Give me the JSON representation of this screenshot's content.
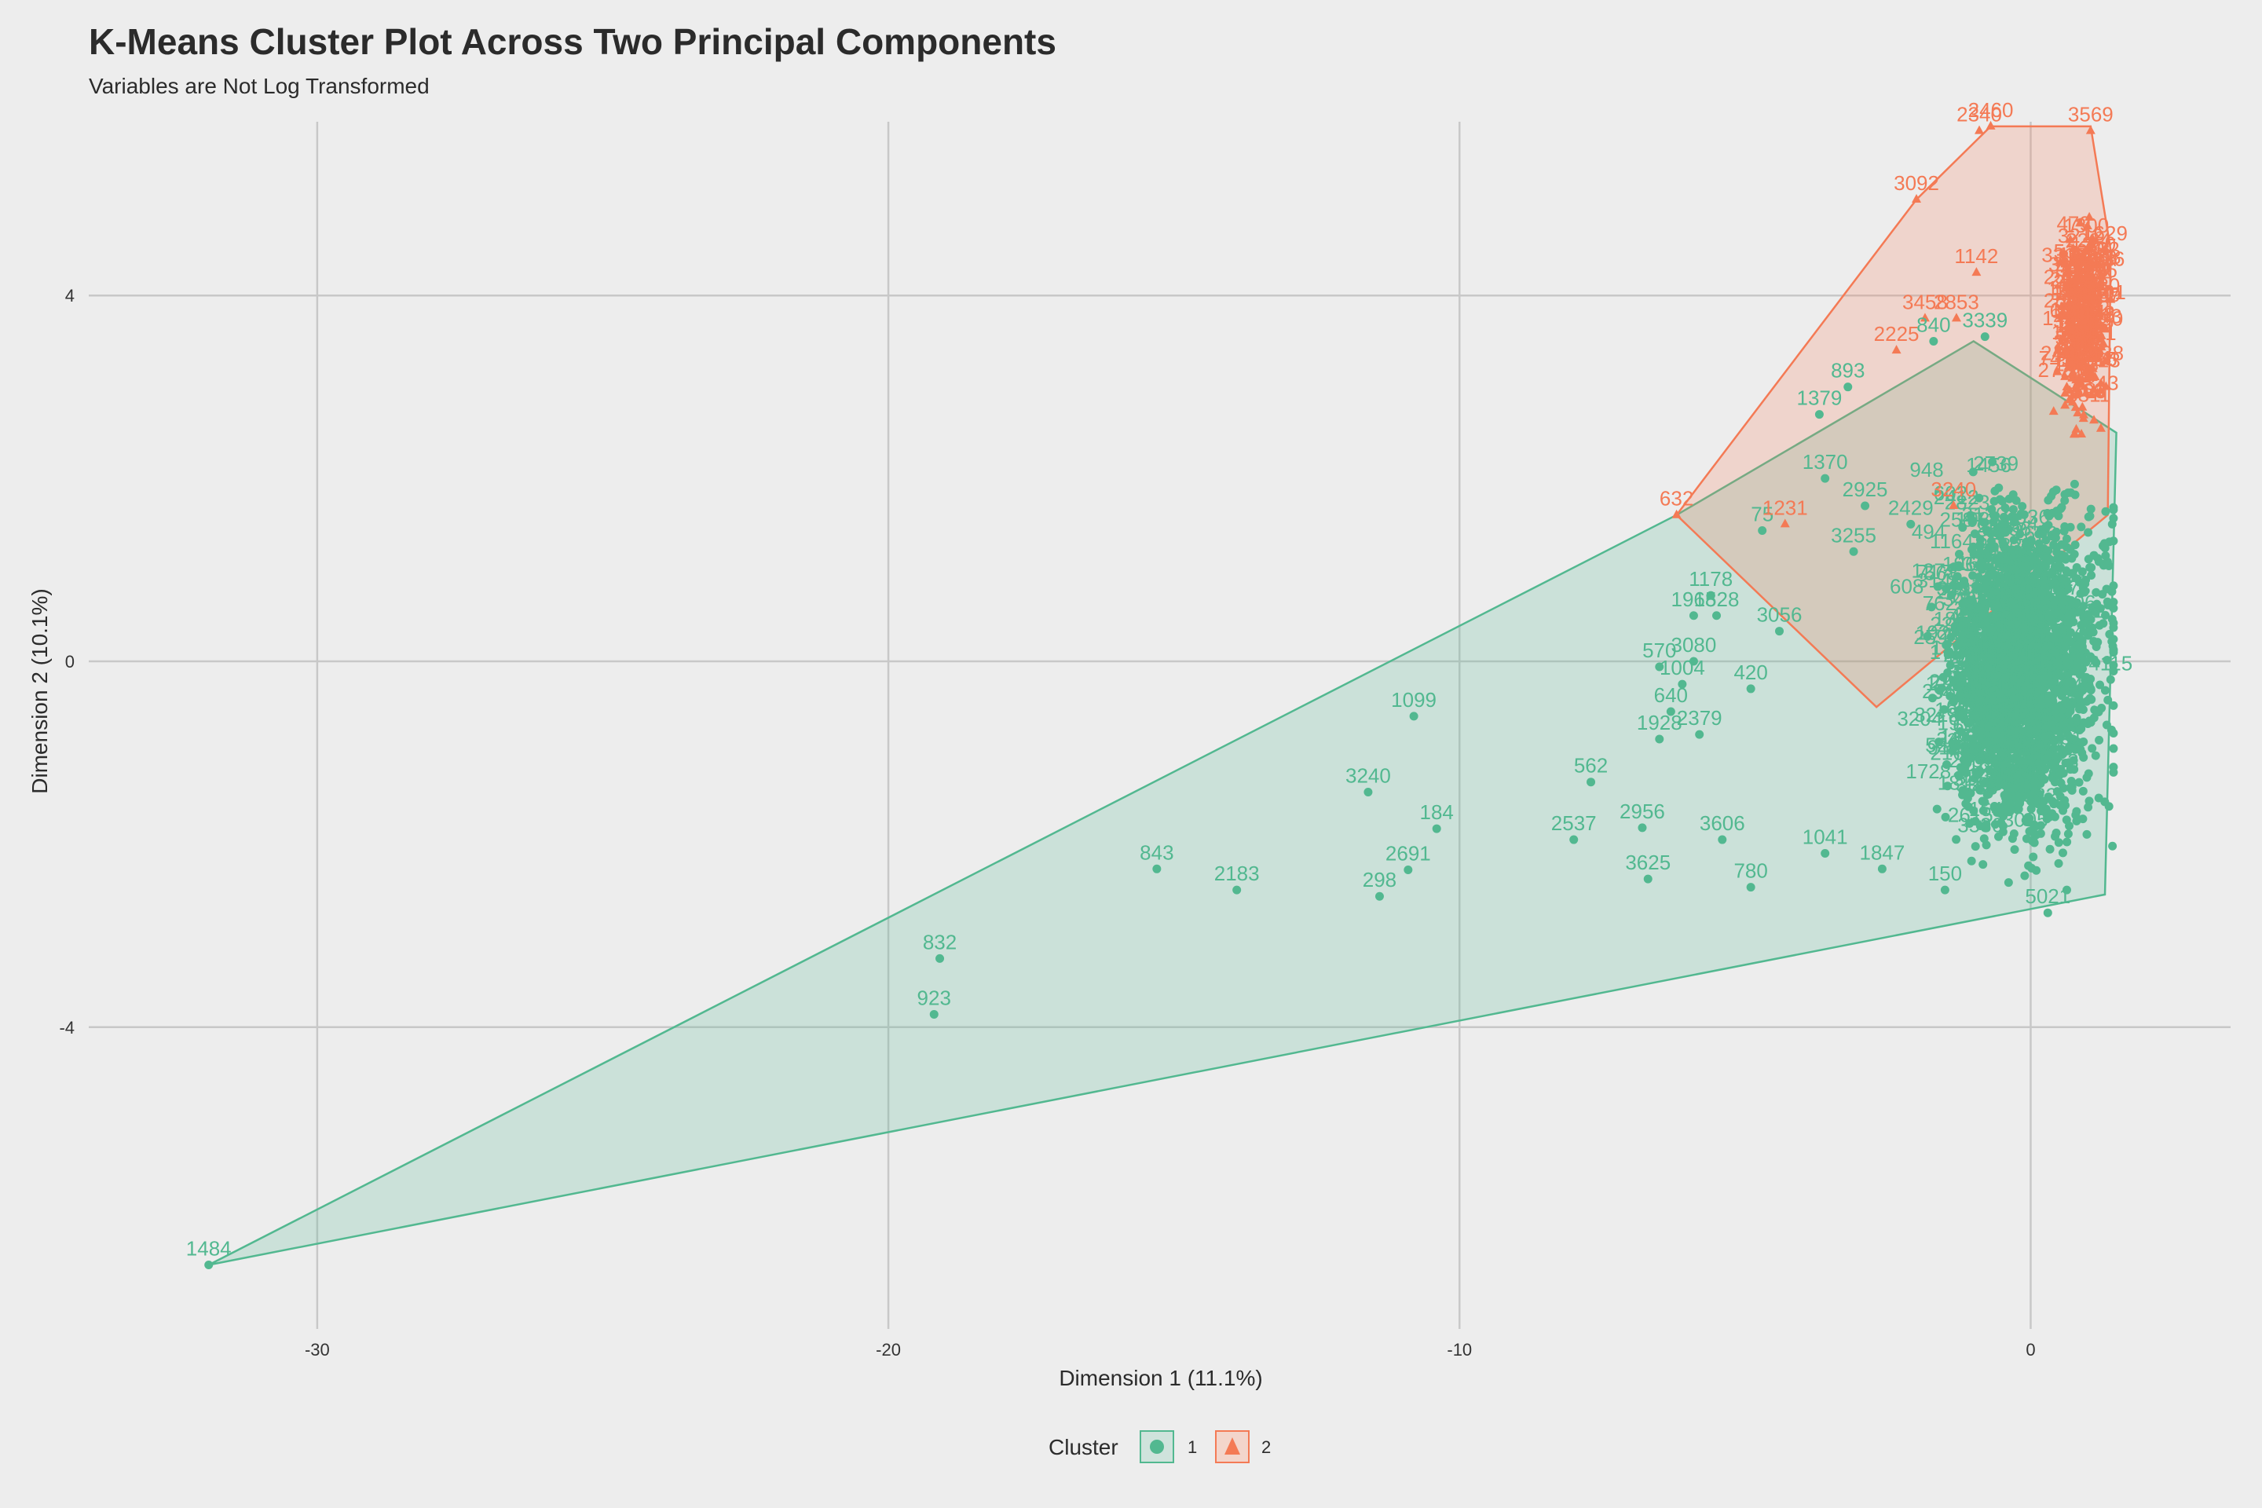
{
  "title": "K-Means Cluster Plot Across Two Principal Components",
  "subtitle": "Variables are Not Log Transformed",
  "chart_data": {
    "type": "scatter",
    "title": "K-Means Cluster Plot Across Two Principal Components",
    "subtitle": "Variables are Not Log Transformed",
    "xlabel": "Dimension 1 (11.1%)",
    "ylabel": "Dimension 2 (10.1%)",
    "xlim": [
      -34,
      3.5
    ],
    "ylim": [
      -7.3,
      5.9
    ],
    "x_ticks": [
      -30,
      -20,
      -10,
      0
    ],
    "y_ticks": [
      -4,
      0,
      4
    ],
    "grid": true,
    "legend": {
      "title": "Cluster",
      "placement": "bottom",
      "entries": [
        "1",
        "2"
      ]
    },
    "colors": {
      "cluster1": "#52b890",
      "cluster2": "#f47a55"
    },
    "series": [
      {
        "name": "1",
        "marker": "circle",
        "color": "#52b890",
        "hull": [
          [
            -31.9,
            -6.6
          ],
          [
            1.3,
            -2.55
          ],
          [
            1.5,
            2.5
          ],
          [
            -1.0,
            3.5
          ],
          [
            -6.2,
            1.6
          ]
        ],
        "points": [
          {
            "label": "1484",
            "x": -31.9,
            "y": -6.6
          },
          {
            "label": "923",
            "x": -19.2,
            "y": -3.86
          },
          {
            "label": "832",
            "x": -19.1,
            "y": -3.25
          },
          {
            "label": "843",
            "x": -15.3,
            "y": -2.27
          },
          {
            "label": "2183",
            "x": -13.9,
            "y": -2.5
          },
          {
            "label": "298",
            "x": -11.4,
            "y": -2.57
          },
          {
            "label": "2691",
            "x": -10.9,
            "y": -2.28
          },
          {
            "label": "3240",
            "x": -11.6,
            "y": -1.43
          },
          {
            "label": "184",
            "x": -10.4,
            "y": -1.83
          },
          {
            "label": "1099",
            "x": -10.8,
            "y": -0.6
          },
          {
            "label": "2537",
            "x": -8.0,
            "y": -1.95
          },
          {
            "label": "562",
            "x": -7.7,
            "y": -1.32
          },
          {
            "label": "2956",
            "x": -6.8,
            "y": -1.82
          },
          {
            "label": "3625",
            "x": -6.7,
            "y": -2.38
          },
          {
            "label": "3606",
            "x": -5.4,
            "y": -1.95
          },
          {
            "label": "780",
            "x": -4.9,
            "y": -2.47
          },
          {
            "label": "1041",
            "x": -3.6,
            "y": -2.1
          },
          {
            "label": "1847",
            "x": -2.6,
            "y": -2.27
          },
          {
            "label": "150",
            "x": -1.5,
            "y": -2.5
          },
          {
            "label": "5021",
            "x": 0.3,
            "y": -2.75
          },
          {
            "label": "1928",
            "x": -6.5,
            "y": -0.85
          },
          {
            "label": "640",
            "x": -6.3,
            "y": -0.55
          },
          {
            "label": "2379",
            "x": -5.8,
            "y": -0.8
          },
          {
            "label": "1004",
            "x": -6.1,
            "y": -0.25
          },
          {
            "label": "570",
            "x": -6.5,
            "y": -0.06
          },
          {
            "label": "3080",
            "x": -5.9,
            "y": 0.0
          },
          {
            "label": "1178",
            "x": -5.6,
            "y": 0.72
          },
          {
            "label": "1968",
            "x": -5.9,
            "y": 0.5
          },
          {
            "label": "1528",
            "x": -5.5,
            "y": 0.5
          },
          {
            "label": "1370",
            "x": -3.6,
            "y": 2.0
          },
          {
            "label": "3056",
            "x": -4.4,
            "y": 0.33
          },
          {
            "label": "75",
            "x": -4.7,
            "y": 1.43
          },
          {
            "label": "893",
            "x": -3.2,
            "y": 3.0
          },
          {
            "label": "1379",
            "x": -3.7,
            "y": 2.7
          },
          {
            "label": "840",
            "x": -1.7,
            "y": 3.5
          },
          {
            "label": "3339",
            "x": -0.8,
            "y": 3.55
          },
          {
            "label": "2925",
            "x": -2.9,
            "y": 1.7
          },
          {
            "label": "2429",
            "x": -2.1,
            "y": 1.5
          },
          {
            "label": "3255",
            "x": -3.1,
            "y": 1.2
          },
          {
            "label": "4115",
            "x": 1.4,
            "y": -0.2
          },
          {
            "label": "420",
            "x": -4.9,
            "y": -0.3
          }
        ]
      },
      {
        "name": "2",
        "marker": "triangle",
        "color": "#f47a55",
        "hull": [
          [
            -0.7,
            5.85
          ],
          [
            1.05,
            5.85
          ],
          [
            1.4,
            4.5
          ],
          [
            1.35,
            1.6
          ],
          [
            -2.7,
            -0.5
          ],
          [
            -6.2,
            1.6
          ],
          [
            -2.0,
            5.05
          ]
        ],
        "points": [
          {
            "label": "632",
            "x": -6.2,
            "y": 1.6
          },
          {
            "label": "1231",
            "x": -4.3,
            "y": 1.5
          },
          {
            "label": "3092",
            "x": -2.0,
            "y": 5.05
          },
          {
            "label": "2460",
            "x": -0.7,
            "y": 5.85
          },
          {
            "label": "2340",
            "x": -0.9,
            "y": 5.8
          },
          {
            "label": "3569",
            "x": 1.05,
            "y": 5.8
          },
          {
            "label": "1142",
            "x": -0.95,
            "y": 4.25
          },
          {
            "label": "3458",
            "x": -1.85,
            "y": 3.75
          },
          {
            "label": "2853",
            "x": -1.3,
            "y": 3.75
          },
          {
            "label": "2225",
            "x": -2.35,
            "y": 3.4
          },
          {
            "label": "1629",
            "x": 1.3,
            "y": 4.5
          },
          {
            "label": "3240",
            "x": -1.35,
            "y": 1.7
          }
        ]
      }
    ]
  }
}
